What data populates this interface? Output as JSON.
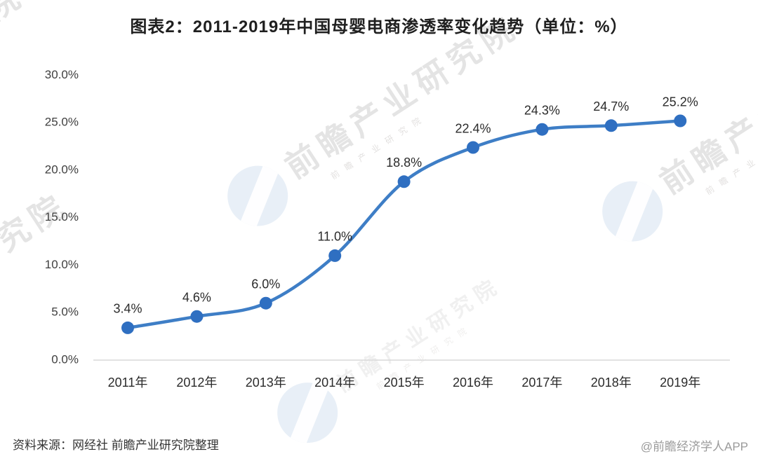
{
  "title": "图表2：2011-2019年中国母婴电商渗透率变化趋势（单位：%）",
  "footer": {
    "source": "资料来源：网经社 前瞻产业研究院整理",
    "credit": "@前瞻经济学人APP"
  },
  "watermark": {
    "text": "前瞻产业研究院",
    "subtext": "前瞻产业研究院",
    "logo_name": "qianzhan-logo"
  },
  "colors": {
    "line": "#3E7EC6",
    "marker": "#2F6FC1",
    "axis_line": "#D9D9D9",
    "title_text": "#1F1F1F",
    "value_label_text": "#2B2B2B",
    "tick_text": "#404040",
    "source_text": "#333333",
    "credit_text": "#9B9B9B"
  },
  "chart_data": {
    "type": "line",
    "title": "图表2：2011-2019年中国母婴电商渗透率变化趋势（单位：%）",
    "categories": [
      "2011年",
      "2012年",
      "2013年",
      "2014年",
      "2015年",
      "2016年",
      "2017年",
      "2018年",
      "2019年"
    ],
    "values": [
      3.4,
      4.6,
      6.0,
      11.0,
      18.8,
      22.4,
      24.3,
      24.7,
      25.2
    ],
    "data_labels": [
      "3.4%",
      "4.6%",
      "6.0%",
      "11.0%",
      "18.8%",
      "22.4%",
      "24.3%",
      "24.7%",
      "25.2%"
    ],
    "y_ticks": [
      {
        "label": "30.0%",
        "value": 30
      },
      {
        "label": "25.0%",
        "value": 25
      },
      {
        "label": "20.0%",
        "value": 20
      },
      {
        "label": "15.0%",
        "value": 15
      },
      {
        "label": "10.0%",
        "value": 10
      },
      {
        "label": "5.0%",
        "value": 5
      },
      {
        "label": "0.0%",
        "value": 0
      }
    ],
    "xlabel": "",
    "ylabel": "",
    "unit": "%",
    "ylim": [
      0,
      30
    ],
    "grid": false,
    "legend": false,
    "marker": "circle",
    "smooth": true
  }
}
